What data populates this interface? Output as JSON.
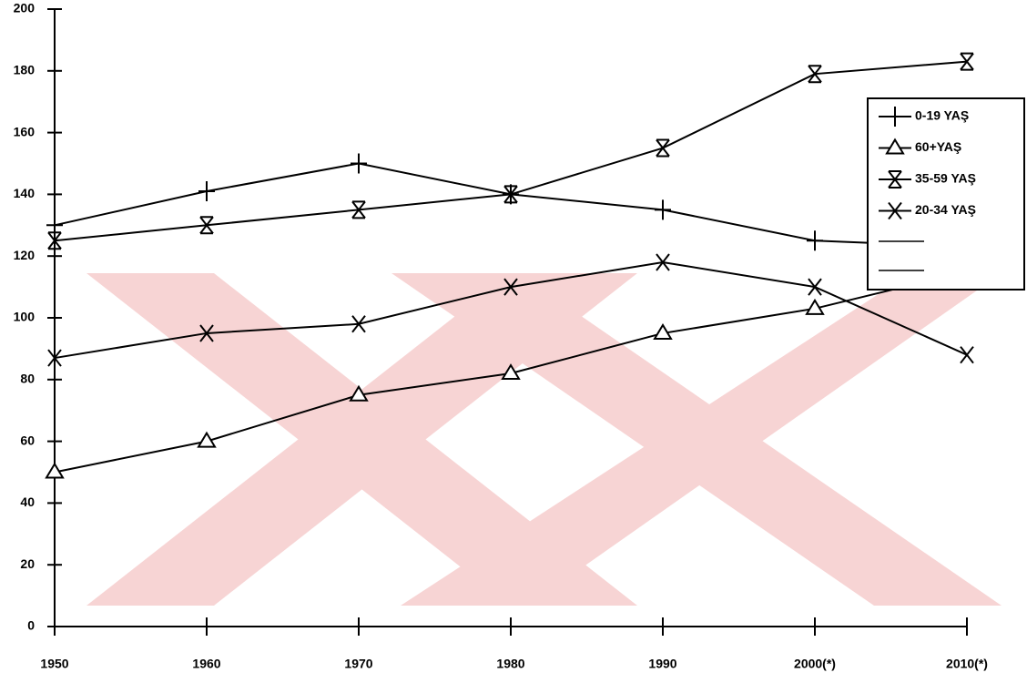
{
  "chart_data": {
    "type": "line",
    "categories": [
      "1950",
      "1960",
      "1970",
      "1980",
      "1990",
      "2000(*)",
      "2010(*)"
    ],
    "series": [
      {
        "name": "0-19 YAŞ",
        "color": "#000000",
        "marker": "plus",
        "values": [
          130,
          141,
          150,
          140,
          135,
          125,
          123
        ]
      },
      {
        "name": "60+YAŞ",
        "color": "#000000",
        "marker": "triangle",
        "values": [
          50,
          60,
          75,
          82,
          95,
          103,
          115
        ]
      },
      {
        "name": "35-59 YAŞ",
        "color": "#000000",
        "marker": "double-x",
        "values": [
          125,
          130,
          135,
          140,
          155,
          179,
          183
        ]
      },
      {
        "name": "20-34 YAŞ",
        "color": "#000000",
        "marker": "x",
        "values": [
          87,
          95,
          98,
          110,
          118,
          110,
          88
        ]
      }
    ],
    "ylim": [
      0,
      200
    ],
    "yticks": [
      0,
      20,
      40,
      60,
      80,
      100,
      120,
      140,
      160,
      180,
      200
    ],
    "grid": false,
    "legend": "upper right"
  }
}
